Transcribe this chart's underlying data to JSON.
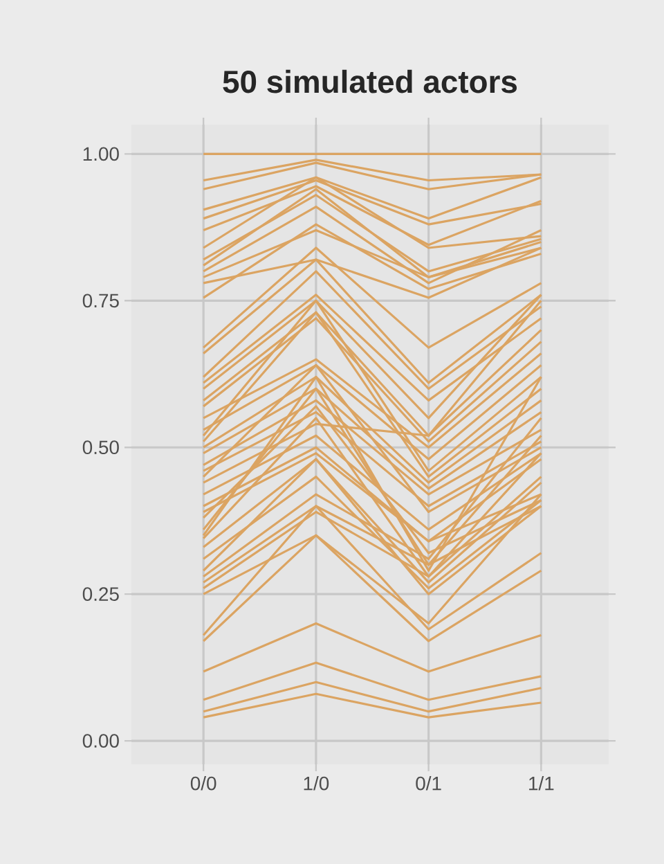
{
  "chart_data": {
    "type": "line",
    "title": "50 simulated actors",
    "categories": [
      "0/0",
      "1/0",
      "0/1",
      "1/1"
    ],
    "ylim": [
      -0.04,
      1.05
    ],
    "yticks": [
      {
        "value": 0,
        "label": "0.00"
      },
      {
        "value": 0.25,
        "label": "0.25"
      },
      {
        "value": 0.5,
        "label": "0.50"
      },
      {
        "value": 0.75,
        "label": "0.75"
      },
      {
        "value": 1,
        "label": "1.00"
      }
    ],
    "grid": true,
    "marker": "none",
    "line_style": "solid",
    "series": [
      {
        "color": "#dba462",
        "values": [
          1,
          1,
          1,
          1
        ]
      },
      {
        "color": "#dba462",
        "values": [
          0.955,
          0.99,
          0.955,
          0.965
        ]
      },
      {
        "color": "#dba462",
        "values": [
          0.94,
          0.985,
          0.94,
          0.965
        ]
      },
      {
        "color": "#dba462",
        "values": [
          0.905,
          0.96,
          0.89,
          0.96
        ]
      },
      {
        "color": "#dba462",
        "values": [
          0.89,
          0.955,
          0.88,
          0.915
        ]
      },
      {
        "color": "#dba462",
        "values": [
          0.87,
          0.945,
          0.845,
          0.92
        ]
      },
      {
        "color": "#dba462",
        "values": [
          0.84,
          0.96,
          0.84,
          0.86
        ]
      },
      {
        "color": "#dba462",
        "values": [
          0.82,
          0.93,
          0.8,
          0.855
        ]
      },
      {
        "color": "#dba462",
        "values": [
          0.81,
          0.94,
          0.79,
          0.85
        ]
      },
      {
        "color": "#dba462",
        "values": [
          0.8,
          0.91,
          0.78,
          0.87
        ]
      },
      {
        "color": "#dba462",
        "values": [
          0.79,
          0.87,
          0.79,
          0.84
        ]
      },
      {
        "color": "#dba462",
        "values": [
          0.78,
          0.82,
          0.755,
          0.84
        ]
      },
      {
        "color": "#dba462",
        "values": [
          0.755,
          0.88,
          0.77,
          0.83
        ]
      },
      {
        "color": "#dba462",
        "values": [
          0.67,
          0.84,
          0.67,
          0.78
        ]
      },
      {
        "color": "#dba462",
        "values": [
          0.66,
          0.82,
          0.61,
          0.76
        ]
      },
      {
        "color": "#dba462",
        "values": [
          0.62,
          0.8,
          0.6,
          0.74
        ]
      },
      {
        "color": "#dba462",
        "values": [
          0.61,
          0.76,
          0.58,
          0.72
        ]
      },
      {
        "color": "#dba462",
        "values": [
          0.6,
          0.75,
          0.55,
          0.76
        ]
      },
      {
        "color": "#dba462",
        "values": [
          0.58,
          0.73,
          0.52,
          0.7
        ]
      },
      {
        "color": "#dba462",
        "values": [
          0.57,
          0.72,
          0.51,
          0.68
        ]
      },
      {
        "color": "#dba462",
        "values": [
          0.55,
          0.65,
          0.5,
          0.66
        ]
      },
      {
        "color": "#dba462",
        "values": [
          0.53,
          0.64,
          0.48,
          0.64
        ]
      },
      {
        "color": "#dba462",
        "values": [
          0.52,
          0.75,
          0.46,
          0.62
        ]
      },
      {
        "color": "#dba462",
        "values": [
          0.51,
          0.73,
          0.45,
          0.6
        ]
      },
      {
        "color": "#dba462",
        "values": [
          0.5,
          0.62,
          0.44,
          0.58
        ]
      },
      {
        "color": "#dba462",
        "values": [
          0.49,
          0.6,
          0.43,
          0.56
        ]
      },
      {
        "color": "#dba462",
        "values": [
          0.47,
          0.58,
          0.42,
          0.53
        ]
      },
      {
        "color": "#dba462",
        "values": [
          0.46,
          0.56,
          0.4,
          0.51
        ]
      },
      {
        "color": "#dba462",
        "values": [
          0.45,
          0.64,
          0.39,
          0.5
        ]
      },
      {
        "color": "#dba462",
        "values": [
          0.44,
          0.54,
          0.52,
          0.75
        ]
      },
      {
        "color": "#dba462",
        "values": [
          0.42,
          0.52,
          0.36,
          0.49
        ]
      },
      {
        "color": "#dba462",
        "values": [
          0.4,
          0.5,
          0.34,
          0.48
        ]
      },
      {
        "color": "#dba462",
        "values": [
          0.39,
          0.49,
          0.34,
          0.42
        ]
      },
      {
        "color": "#dba462",
        "values": [
          0.38,
          0.57,
          0.32,
          0.41
        ]
      },
      {
        "color": "#dba462",
        "values": [
          0.36,
          0.6,
          0.3,
          0.4
        ]
      },
      {
        "color": "#dba462",
        "values": [
          0.35,
          0.62,
          0.29,
          0.62
        ]
      },
      {
        "color": "#dba462",
        "values": [
          0.345,
          0.55,
          0.28,
          0.45
        ]
      },
      {
        "color": "#dba462",
        "values": [
          0.33,
          0.48,
          0.27,
          0.44
        ]
      },
      {
        "color": "#dba462",
        "values": [
          0.31,
          0.45,
          0.26,
          0.41
        ]
      },
      {
        "color": "#dba462",
        "values": [
          0.29,
          0.48,
          0.25,
          0.4
        ]
      },
      {
        "color": "#dba462",
        "values": [
          0.28,
          0.42,
          0.31,
          0.55
        ]
      },
      {
        "color": "#dba462",
        "values": [
          0.27,
          0.4,
          0.3,
          0.52
        ]
      },
      {
        "color": "#dba462",
        "values": [
          0.26,
          0.39,
          0.28,
          0.49
        ]
      },
      {
        "color": "#dba462",
        "values": [
          0.25,
          0.35,
          0.2,
          0.42
        ]
      },
      {
        "color": "#dba462",
        "values": [
          0.18,
          0.4,
          0.19,
          0.32
        ]
      },
      {
        "color": "#dba462",
        "values": [
          0.17,
          0.35,
          0.17,
          0.29
        ]
      },
      {
        "color": "#dba462",
        "values": [
          0.118,
          0.2,
          0.118,
          0.18
        ]
      },
      {
        "color": "#dba462",
        "values": [
          0.07,
          0.133,
          0.07,
          0.11
        ]
      },
      {
        "color": "#dba462",
        "values": [
          0.05,
          0.1,
          0.05,
          0.09
        ]
      },
      {
        "color": "#dba462",
        "values": [
          0.04,
          0.08,
          0.04,
          0.065
        ]
      }
    ]
  }
}
